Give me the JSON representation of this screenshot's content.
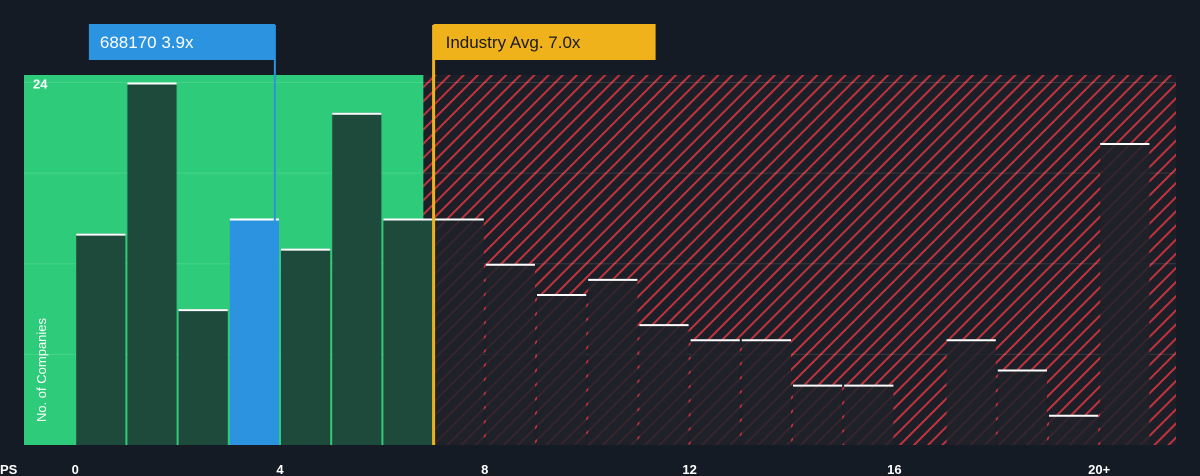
{
  "chart_data": {
    "type": "bar",
    "x_unit": "PS",
    "ylabel": "No. of Companies",
    "xlim": [
      -1,
      21.5
    ],
    "ylim": [
      0,
      24.5
    ],
    "x_ticks": [
      0,
      4,
      8,
      12,
      16,
      20
    ],
    "x_tick_labels": [
      "0",
      "4",
      "8",
      "12",
      "16",
      "20+"
    ],
    "y_ticks": [
      24
    ],
    "y_tick_labels": [
      "24"
    ],
    "gridlines_y": [
      6,
      12,
      18,
      24
    ],
    "bin_width": 1,
    "bins": [
      {
        "x0": 0,
        "value": 14
      },
      {
        "x0": 1,
        "value": 24
      },
      {
        "x0": 2,
        "value": 9
      },
      {
        "x0": 3,
        "value": 15
      },
      {
        "x0": 4,
        "value": 13
      },
      {
        "x0": 5,
        "value": 22
      },
      {
        "x0": 6,
        "value": 15
      },
      {
        "x0": 7,
        "value": 15
      },
      {
        "x0": 8,
        "value": 12
      },
      {
        "x0": 9,
        "value": 10
      },
      {
        "x0": 10,
        "value": 11
      },
      {
        "x0": 11,
        "value": 8
      },
      {
        "x0": 12,
        "value": 7
      },
      {
        "x0": 13,
        "value": 7
      },
      {
        "x0": 14,
        "value": 4
      },
      {
        "x0": 15,
        "value": 4
      },
      {
        "x0": 17,
        "value": 7
      },
      {
        "x0": 18,
        "value": 5
      },
      {
        "x0": 19,
        "value": 2
      },
      {
        "x0": 20,
        "value": 20
      }
    ],
    "company": {
      "label": "688170 3.9x",
      "value": 3.9,
      "color": "#2b93e0",
      "bin_x0": 3
    },
    "industry": {
      "label": "Industry Avg. 7.0x",
      "value": 7.0,
      "color": "#f0b21a"
    },
    "fair_zone_end": 6.8,
    "colors": {
      "background": "#151b24",
      "fair_zone": "#2ecc7a",
      "bar_in_fair": "#1e4a3c",
      "bar_outside": "#1e2229",
      "overvalued_stripe": "#c0333d",
      "bar_top": "#ffffff"
    }
  }
}
